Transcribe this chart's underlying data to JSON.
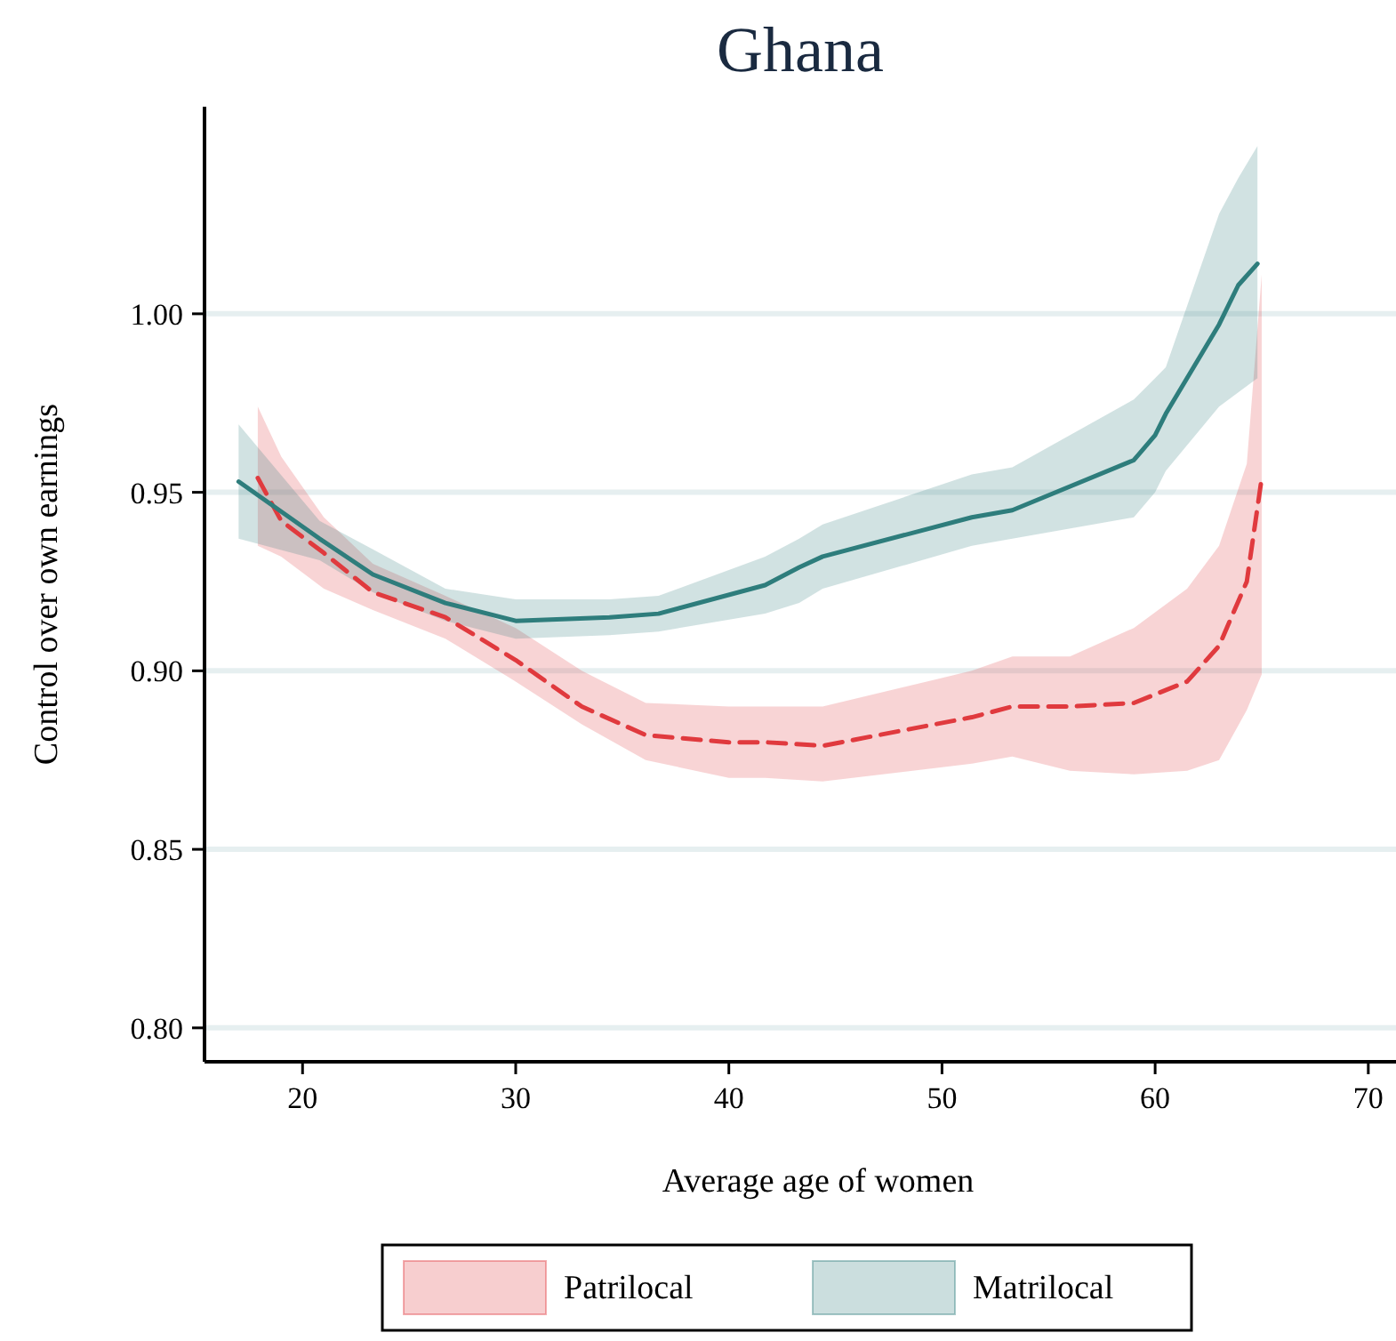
{
  "chart_data": {
    "type": "line",
    "title": "Ghana",
    "xlabel": "Average age of women",
    "ylabel": "Control over own earnings",
    "xlim": [
      15.4,
      71.3
    ],
    "ylim": [
      0.7905,
      1.058
    ],
    "xticks": [
      20,
      30,
      40,
      50,
      60,
      70
    ],
    "yticks": [
      {
        "value": 0.8,
        "label": "0.80"
      },
      {
        "value": 0.85,
        "label": "0.85"
      },
      {
        "value": 0.9,
        "label": "0.90"
      },
      {
        "value": 0.95,
        "label": "0.95"
      },
      {
        "value": 1.0,
        "label": "1.00"
      }
    ],
    "grid": "y",
    "legend": "bottom",
    "series": [
      {
        "name": "Patrilocal",
        "color": "#e03a3e",
        "line_style": "dashed",
        "x": [
          17.9,
          19,
          21,
          23.3,
          26.7,
          30,
          33.1,
          36.1,
          40,
          41.7,
          44.4,
          51.4,
          53.3,
          56,
          59,
          61.5,
          63,
          64.3,
          65
        ],
        "values": [
          0.954,
          0.942,
          0.933,
          0.922,
          0.915,
          0.903,
          0.89,
          0.882,
          0.88,
          0.88,
          0.879,
          0.887,
          0.89,
          0.89,
          0.891,
          0.897,
          0.907,
          0.925,
          0.954
        ],
        "upper": [
          0.974,
          0.96,
          0.943,
          0.93,
          0.921,
          0.912,
          0.9,
          0.891,
          0.89,
          0.89,
          0.89,
          0.9,
          0.904,
          0.904,
          0.912,
          0.923,
          0.935,
          0.958,
          1.011
        ],
        "lower": [
          0.935,
          0.932,
          0.923,
          0.917,
          0.909,
          0.897,
          0.885,
          0.875,
          0.87,
          0.87,
          0.869,
          0.874,
          0.876,
          0.872,
          0.871,
          0.872,
          0.875,
          0.889,
          0.899
        ]
      },
      {
        "name": "Matrilocal",
        "color": "#2e7d7c",
        "line_style": "solid",
        "x": [
          17,
          20.8,
          23.3,
          26.7,
          30,
          34.4,
          36.7,
          41.7,
          43.3,
          44.4,
          51.4,
          53.3,
          59,
          60,
          60.5,
          63,
          63.9,
          64.8
        ],
        "values": [
          0.953,
          0.937,
          0.927,
          0.919,
          0.914,
          0.915,
          0.916,
          0.924,
          0.929,
          0.932,
          0.943,
          0.945,
          0.959,
          0.966,
          0.972,
          0.997,
          1.008,
          1.014
        ],
        "upper": [
          0.969,
          0.942,
          0.934,
          0.923,
          0.92,
          0.92,
          0.921,
          0.932,
          0.937,
          0.941,
          0.955,
          0.957,
          0.976,
          0.982,
          0.985,
          1.028,
          1.038,
          1.047
        ],
        "lower": [
          0.937,
          0.931,
          0.922,
          0.914,
          0.909,
          0.91,
          0.911,
          0.916,
          0.919,
          0.923,
          0.935,
          0.937,
          0.943,
          0.95,
          0.956,
          0.974,
          0.978,
          0.982
        ]
      }
    ]
  }
}
